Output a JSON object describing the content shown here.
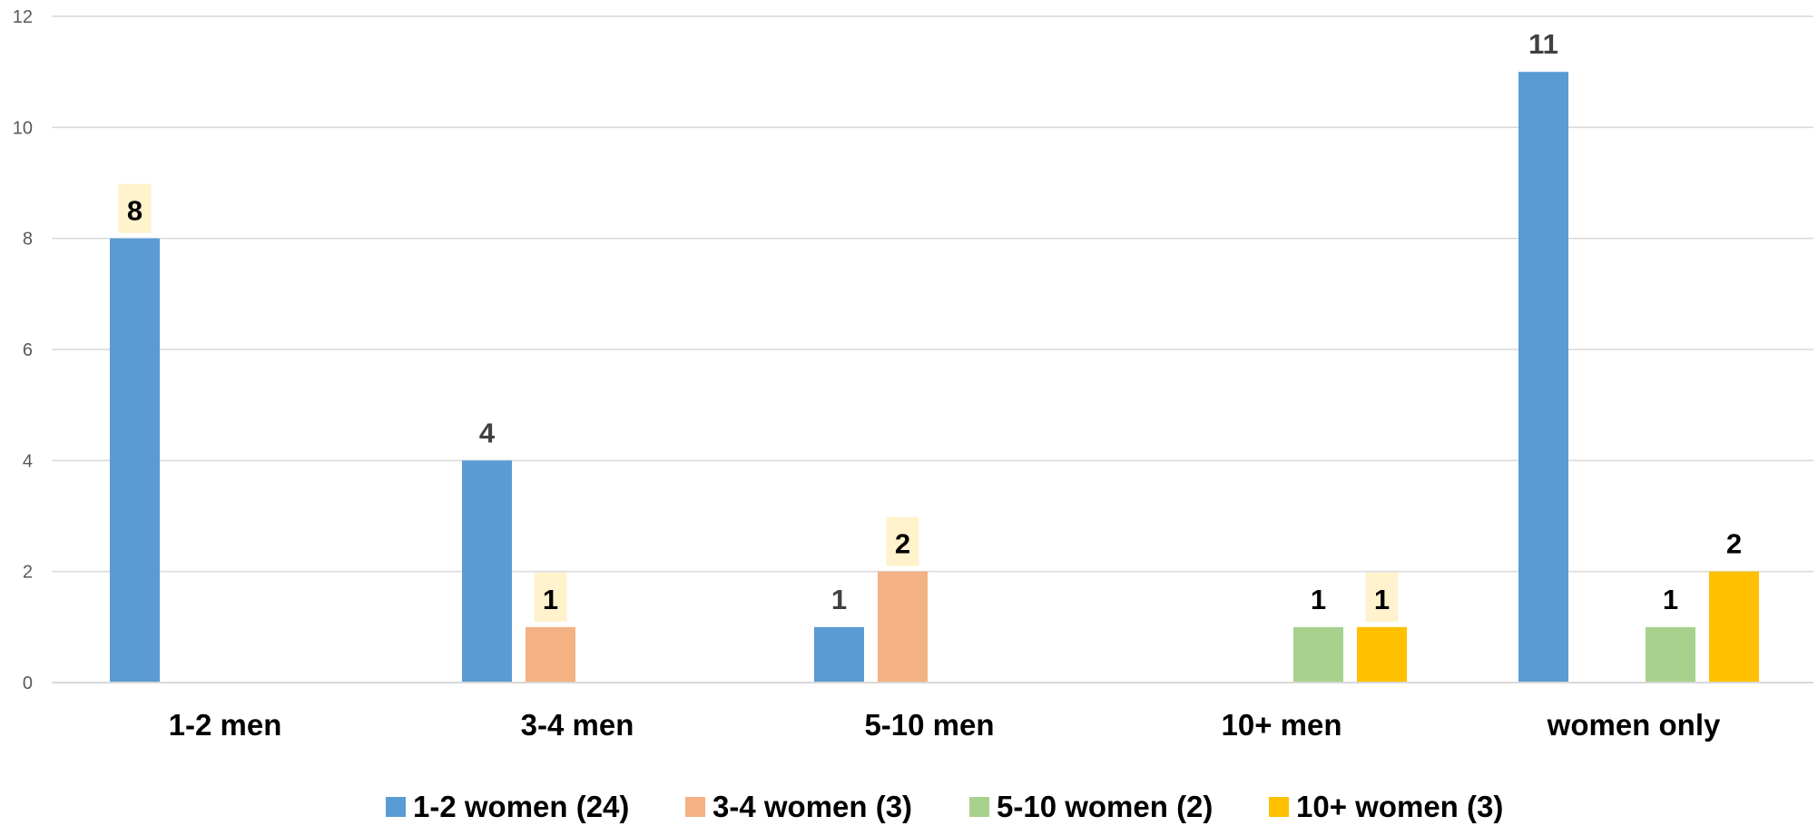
{
  "chart_data": {
    "type": "bar",
    "title": "",
    "xlabel": "",
    "ylabel": "",
    "ylim": [
      0,
      12
    ],
    "yticks": [
      0,
      2,
      4,
      6,
      8,
      10,
      12
    ],
    "grid": true,
    "legend_position": "bottom",
    "categories": [
      "1-2 men",
      "3-4 men",
      "5-10 men",
      "10+ men",
      "women only"
    ],
    "series": [
      {
        "name": "1-2 women (24)",
        "color": "#5B9BD5",
        "values": [
          8,
          4,
          1,
          null,
          11
        ],
        "labels": [
          "8",
          "4",
          "1",
          "",
          "11"
        ],
        "highlight": [
          true,
          false,
          false,
          false,
          false
        ]
      },
      {
        "name": "3-4 women (3)",
        "color": "#F4B183",
        "values": [
          null,
          1,
          2,
          null,
          null
        ],
        "labels": [
          "",
          "1",
          "2",
          "",
          ""
        ],
        "highlight": [
          false,
          true,
          true,
          false,
          false
        ]
      },
      {
        "name": "5-10 women (2)",
        "color": "#A9D18E",
        "values": [
          null,
          null,
          null,
          1,
          1
        ],
        "labels": [
          "",
          "",
          "",
          "1",
          "1"
        ],
        "highlight": [
          false,
          false,
          false,
          false,
          false
        ]
      },
      {
        "name": "10+ women (3)",
        "color": "#FFC000",
        "values": [
          null,
          null,
          null,
          1,
          2
        ],
        "labels": [
          "",
          "",
          "",
          "1",
          "2"
        ],
        "highlight": [
          false,
          false,
          false,
          true,
          false
        ]
      }
    ],
    "label_highlight_color": "#FFF2CC",
    "gridline_color": "#D9D9D9"
  }
}
